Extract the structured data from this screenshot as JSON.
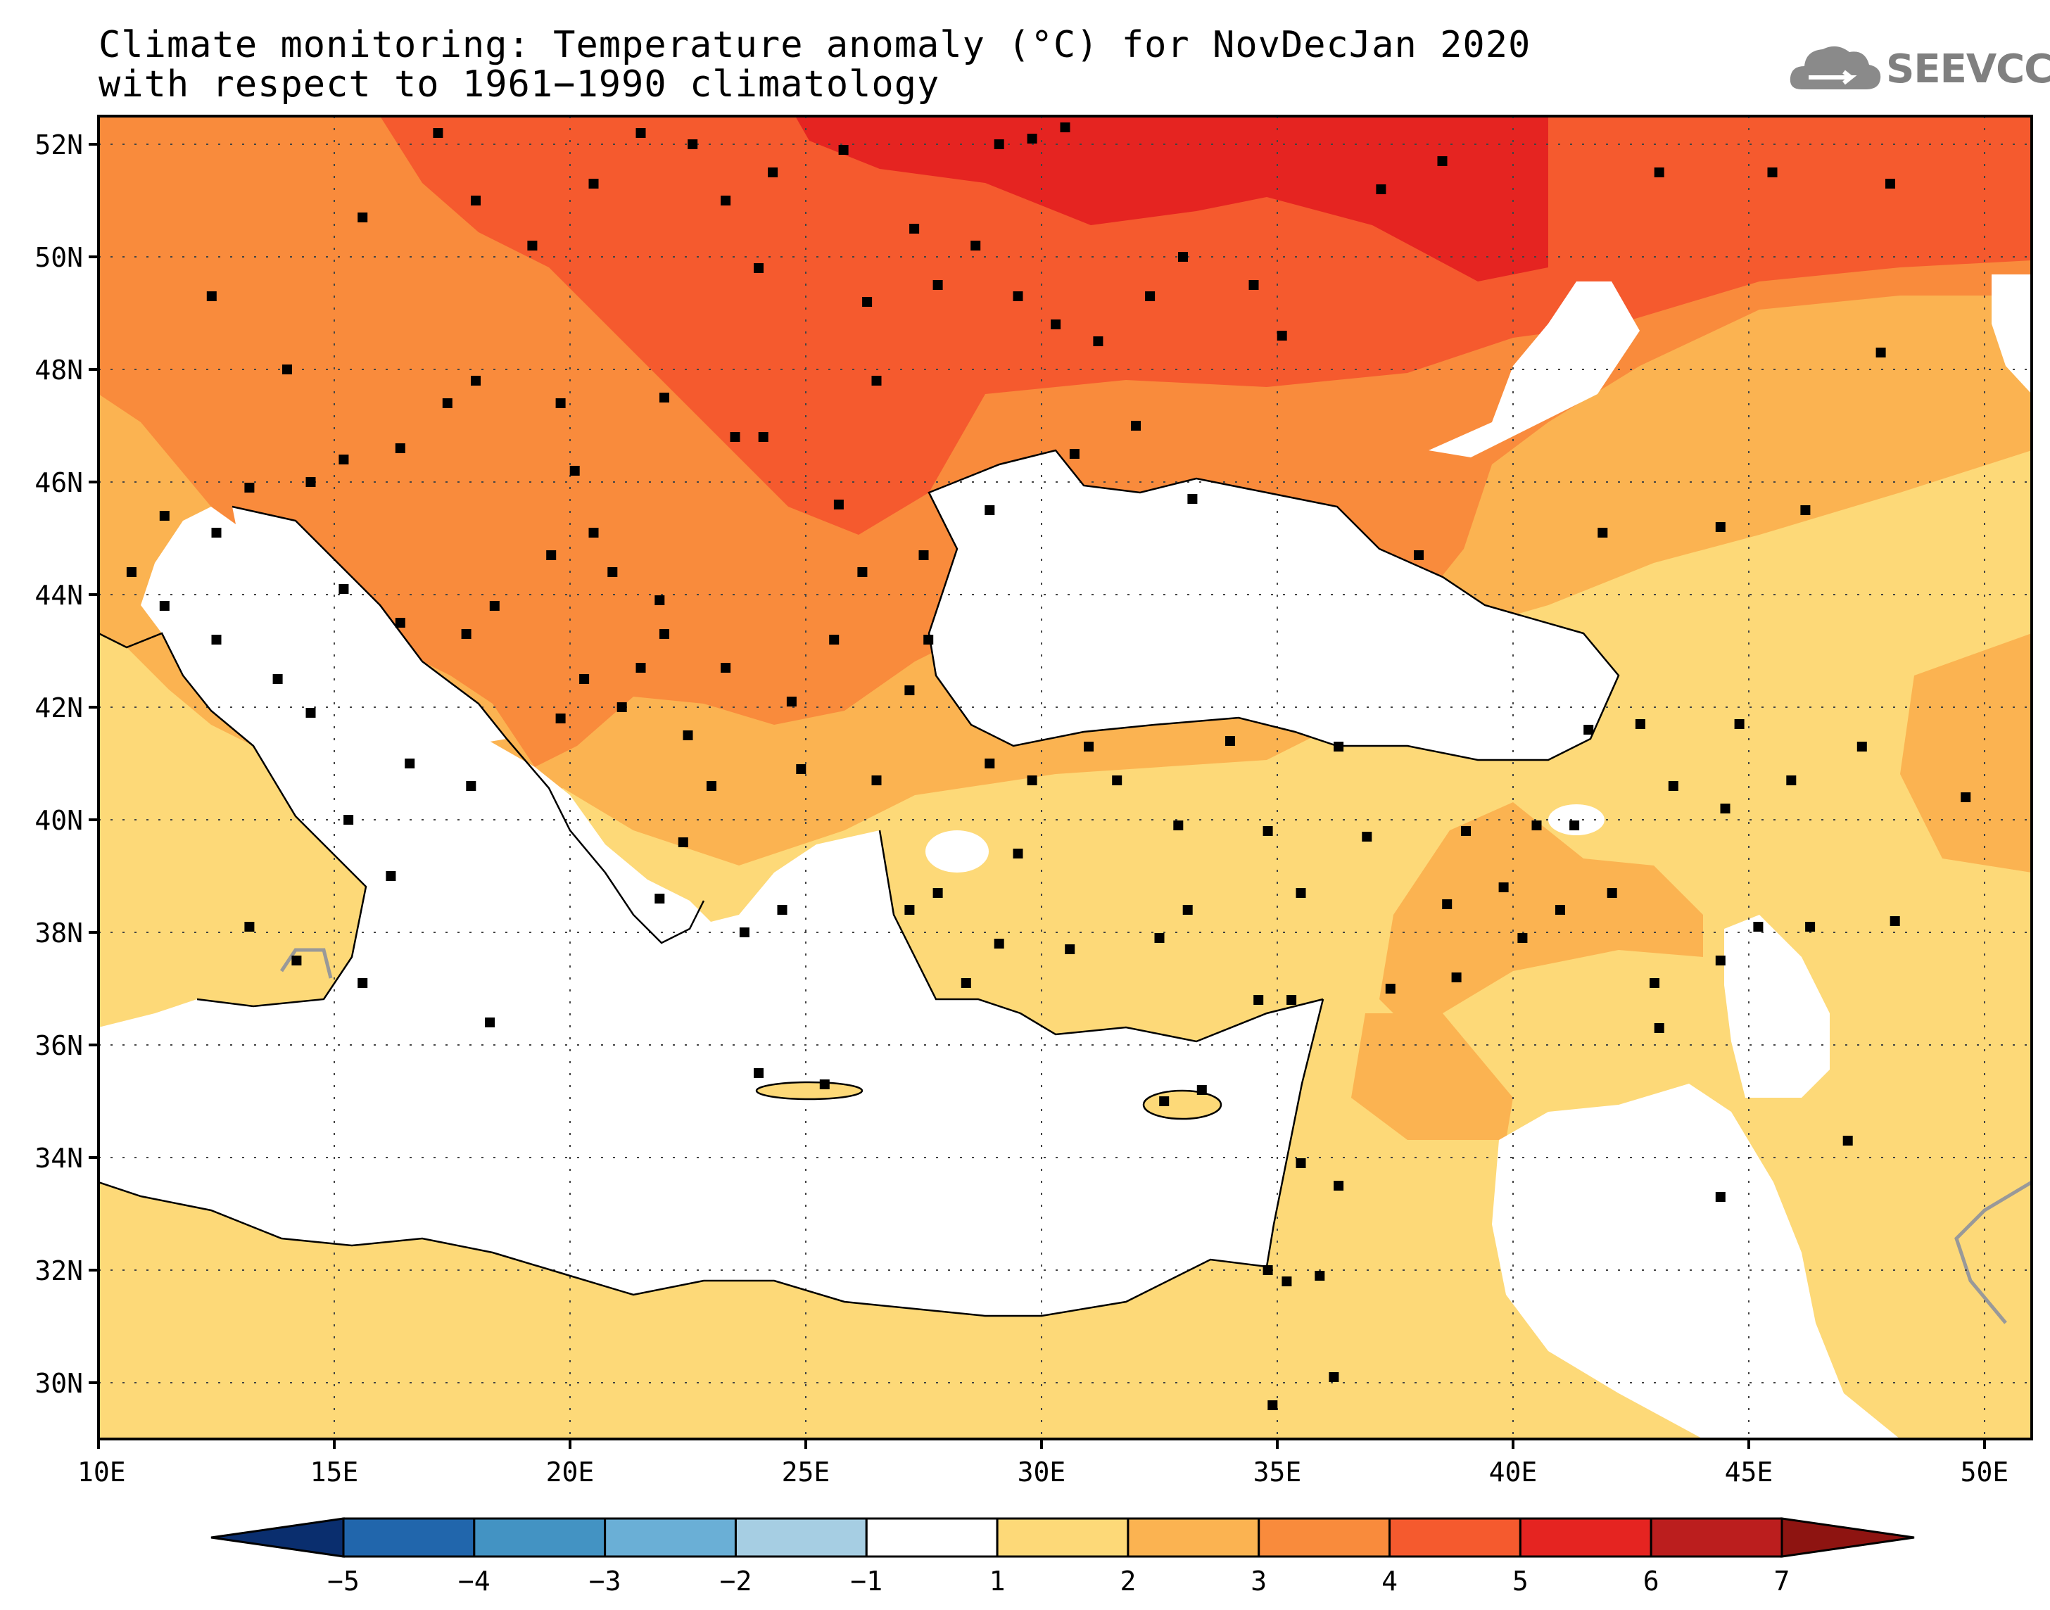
{
  "title": {
    "line1": "Climate monitoring: Temperature anomaly (°C) for NovDecJan 2020",
    "line2": "with respect to 1961−1990 climatology"
  },
  "logo": {
    "text": "SEEVCCC",
    "icon": "cloud-icon"
  },
  "map": {
    "lon_range": [
      10,
      51
    ],
    "lat_range": [
      29,
      52.5
    ],
    "x_ticks": [
      "10E",
      "15E",
      "20E",
      "25E",
      "30E",
      "35E",
      "40E",
      "45E",
      "50E"
    ],
    "y_ticks": [
      "30N",
      "32N",
      "34N",
      "36N",
      "38N",
      "40N",
      "42N",
      "44N",
      "46N",
      "48N",
      "50N",
      "52N"
    ]
  },
  "colorbar": {
    "labels": [
      "−5",
      "−4",
      "−3",
      "−2",
      "−1",
      "1",
      "2",
      "3",
      "4",
      "5",
      "6",
      "7"
    ],
    "colors": [
      "#0a2e6e",
      "#2166ac",
      "#4393c3",
      "#6aafd6",
      "#a6cee3",
      "#ffffff",
      "#fdd978",
      "#fbb351",
      "#f98b3c",
      "#f55a2e",
      "#e52421",
      "#bb1e1e",
      "#8e1411"
    ]
  }
}
